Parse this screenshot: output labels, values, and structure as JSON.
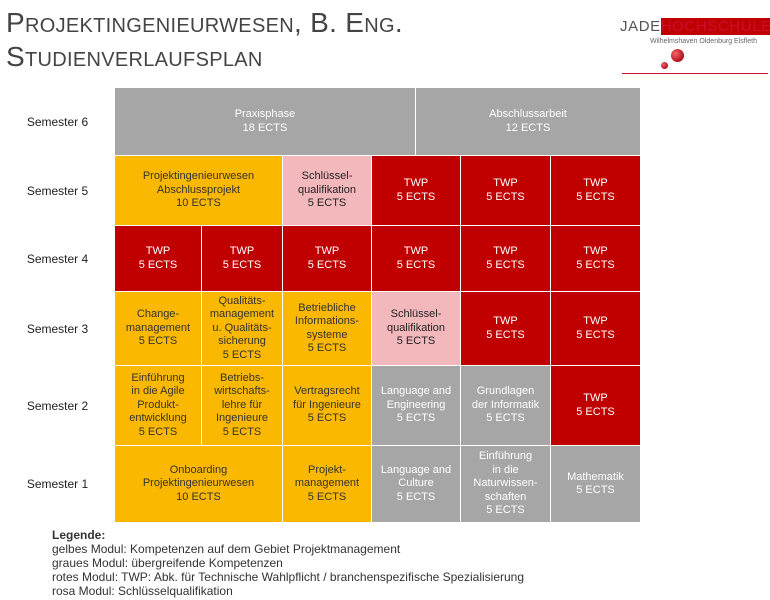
{
  "title": {
    "line1": "Projektingenieurwesen, B. Eng.",
    "line2": "Studienverlaufsplan"
  },
  "logo": {
    "name_prefix": "JADE",
    "name_suffix": "HOCHSCHULE",
    "subtitle": "Wilhelmshaven Oldenburg Elsfleth"
  },
  "colors": {
    "yellow": "#fbb800",
    "gray": "#a6a6a6",
    "red": "#c00000",
    "pink": "#f2b8bc"
  },
  "semesters": [
    "Semester 6",
    "Semester 5",
    "Semester 4",
    "Semester 3",
    "Semester 2",
    "Semester 1"
  ],
  "modules": {
    "s6_praxis": "Praxisphase\n18 ECTS",
    "s6_abschluss": "Abschlussarbeit\n12 ECTS",
    "s5_projekt": "Projektingenieurwesen\nAbschlussprojekt\n10 ECTS",
    "s5_schluessel": "Schlüssel-\nqualifikation\n5 ECTS",
    "s5_twp1": "TWP\n5 ECTS",
    "s5_twp2": "TWP\n5 ECTS",
    "s5_twp3": "TWP\n5 ECTS",
    "s4_twp1": "TWP\n5 ECTS",
    "s4_twp2": "TWP\n5 ECTS",
    "s4_twp3": "TWP\n5 ECTS",
    "s4_twp4": "TWP\n5 ECTS",
    "s4_twp5": "TWP\n5 ECTS",
    "s4_twp6": "TWP\n5 ECTS",
    "s3_change": "Change-\nmanagement\n5 ECTS",
    "s3_qualitaet": "Qualitäts-\nmanagement\nu. Qualitäts-\nsicherung\n5 ECTS",
    "s3_betrieb": "Betriebliche\nInformations-\nsysteme\n5 ECTS",
    "s3_schluessel": "Schlüssel-\nqualifikation\n5 ECTS",
    "s3_twp1": "TWP\n5 ECTS",
    "s3_twp2": "TWP\n5 ECTS",
    "s2_agile": "Einführung\nin die Agile\nProdukt-\nentwicklung\n5 ECTS",
    "s2_bwl": "Betriebs-\nwirtschafts-\nlehre  für\nIngenieure\n5 ECTS",
    "s2_recht": "Vertragsrecht\nfür Ingenieure\n5 ECTS",
    "s2_language": "Language and\nEngineering\n5 ECTS",
    "s2_informatik": "Grundlagen\nder Informatik\n5 ECTS",
    "s2_twp": "TWP\n5 ECTS",
    "s1_onboarding": "Onboarding\nProjektingenieurwesen\n10 ECTS",
    "s1_projektmgmt": "Projekt-\nmanagement\n5 ECTS",
    "s1_language": "Language and\nCulture\n5 ECTS",
    "s1_natur": "Einführung\nin die\nNaturwissen-\nschaften\n5 ECTS",
    "s1_mathe": "Mathematik\n5 ECTS"
  },
  "legend": {
    "title": "Legende:",
    "items": [
      "gelbes Modul: Kompetenzen auf dem Gebiet Projektmanagement",
      "graues Modul: übergreifende Kompetenzen",
      "rotes Modul: TWP: Abk. für Technische Wahlpflicht / branchenspezifische Spezialisierung",
      "rosa Modul: Schlüsselqualifikation"
    ]
  }
}
